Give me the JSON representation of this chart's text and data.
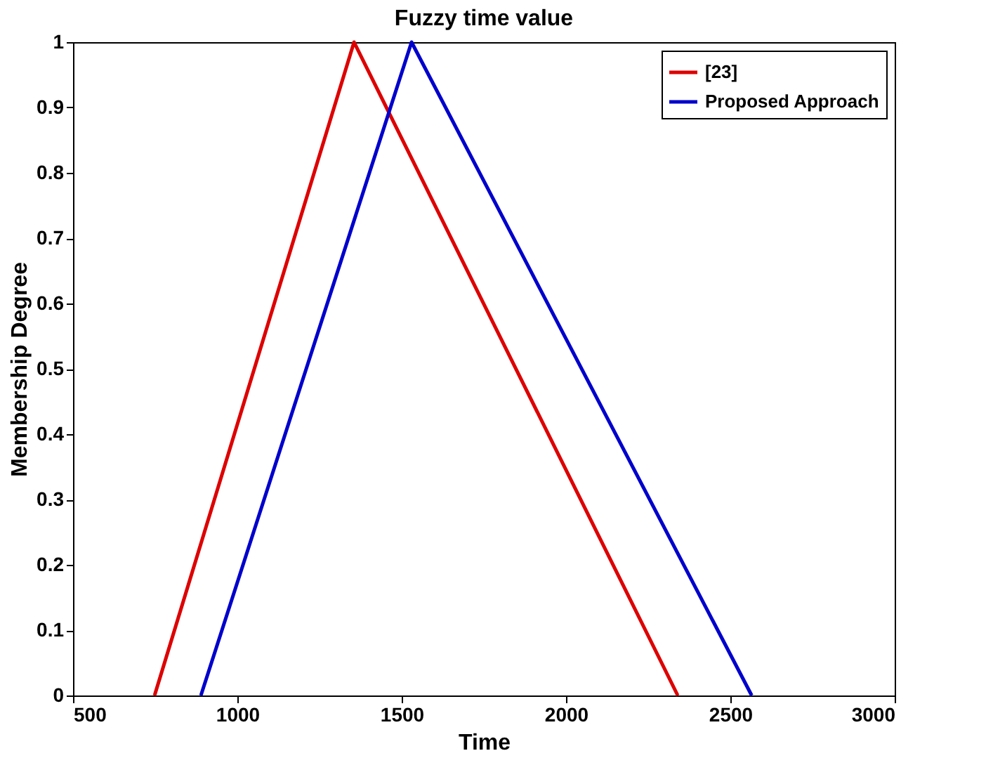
{
  "chart_data": {
    "type": "line",
    "title": "Fuzzy time value",
    "xlabel": "Time",
    "ylabel": "Membership Degree",
    "series": [
      {
        "name": "[23]",
        "color": "#dd0000",
        "x": [
          748,
          1355,
          2340
        ],
        "values": [
          0,
          1,
          0
        ]
      },
      {
        "name": "Proposed Approach",
        "color": "#0000cc",
        "x": [
          889,
          1530,
          2565
        ],
        "values": [
          0,
          1,
          0
        ]
      }
    ],
    "xlim": [
      500,
      3000
    ],
    "xticks": [
      500,
      1000,
      1500,
      2000,
      2500,
      3000
    ],
    "ylim": [
      0,
      1
    ],
    "yticks": [
      0,
      0.1,
      0.2,
      0.3,
      0.4,
      0.5,
      0.6,
      0.7,
      0.8,
      0.9,
      1
    ],
    "grid": false,
    "legend": "top right",
    "marker": "none",
    "line_style": "solid"
  }
}
